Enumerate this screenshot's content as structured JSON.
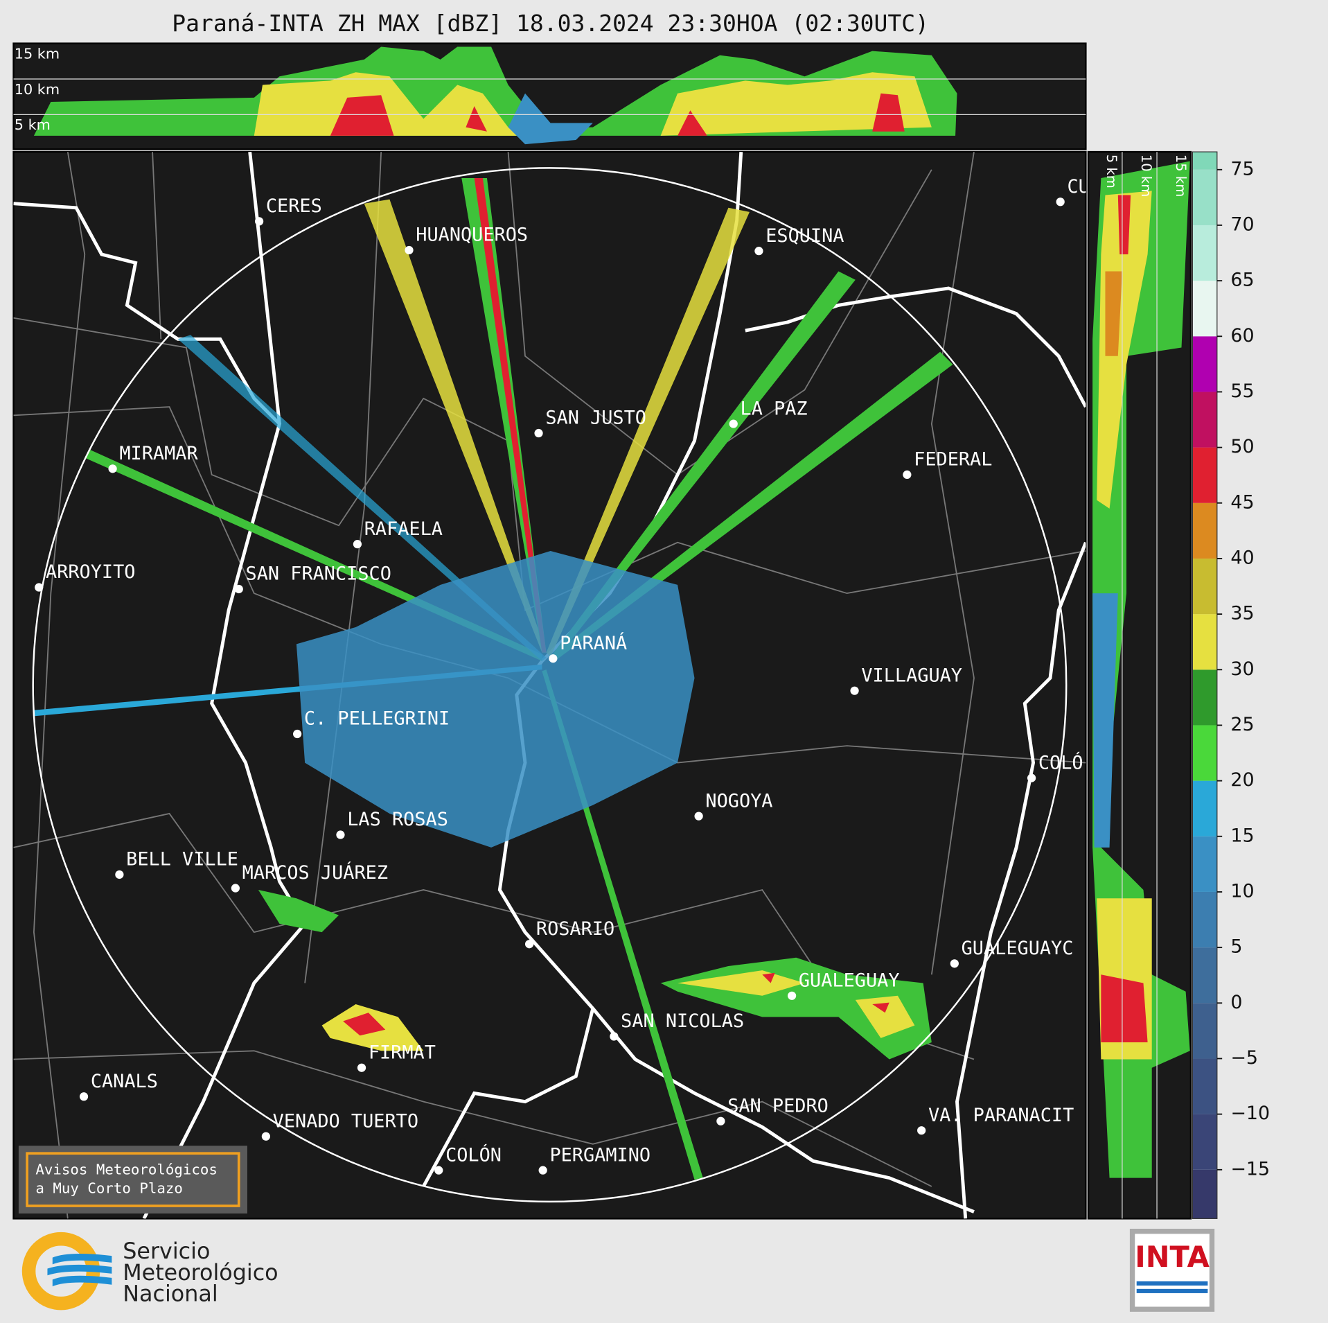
{
  "title": "Paraná-INTA ZH MAX [dBZ] 18.03.2024 23:30HOA (02:30UTC)",
  "profile_top": {
    "labels": [
      "15 km",
      "10 km",
      "5 km"
    ]
  },
  "profile_side": {
    "labels": [
      "5 km",
      "10 km",
      "15 km"
    ]
  },
  "cities": [
    "CERES",
    "HUANQUEROS",
    "ESQUINA",
    "CU",
    "SAN JUSTO",
    "LA PAZ",
    "MIRAMAR",
    "FEDERAL",
    "RAFAELA",
    "ARROYITO",
    "SAN FRANCISCO",
    "PARANÁ",
    "VILLAGUAY",
    "C. PELLEGRINI",
    "COLÓ",
    "NOGOYA",
    "LAS ROSAS",
    "BELL VILLE",
    "MARCOS JUÁREZ",
    "ROSARIO",
    "GUALEGUAYC",
    "GUALEGUAY",
    "SAN NICOLAS",
    "FIRMAT",
    "CANALS",
    "SAN PEDRO",
    "VA. PARANACIT",
    "VENADO TUERTO",
    "COLÓN",
    "PERGAMINO"
  ],
  "colorbar": {
    "clim": [
      -19.4,
      76.6
    ],
    "levels": [
      -20,
      -15,
      -10,
      -5,
      0,
      5,
      10,
      15,
      20,
      25,
      30,
      35,
      40,
      45,
      50,
      55,
      60,
      65,
      70,
      75,
      80
    ],
    "colors": [
      "#36396a",
      "#3a4577",
      "#3c5282",
      "#3e608e",
      "#3e6e9c",
      "#3c7eb0",
      "#3a90c4",
      "#2aa8d8",
      "#4ad83a",
      "#2f9a2c",
      "#e6e040",
      "#c8bc30",
      "#dc8a20",
      "#e02030",
      "#c01060",
      "#b000b0",
      "#e8f6f0",
      "#b8ecdc",
      "#98e0c8",
      "#80d8b8"
    ],
    "ticks": [
      75,
      70,
      65,
      60,
      55,
      50,
      45,
      40,
      35,
      30,
      25,
      20,
      15,
      10,
      5,
      0,
      {
        "value": -5,
        "label": "−5"
      },
      {
        "value": -10,
        "label": "−10"
      },
      {
        "value": -15,
        "label": "−15"
      }
    ]
  },
  "notice": [
    "Avisos Meteorológicos",
    "a Muy Corto Plazo"
  ],
  "logo_smn": [
    "Servicio",
    "Meteorológico",
    "Nacional"
  ],
  "logo_inta": "INTA"
}
